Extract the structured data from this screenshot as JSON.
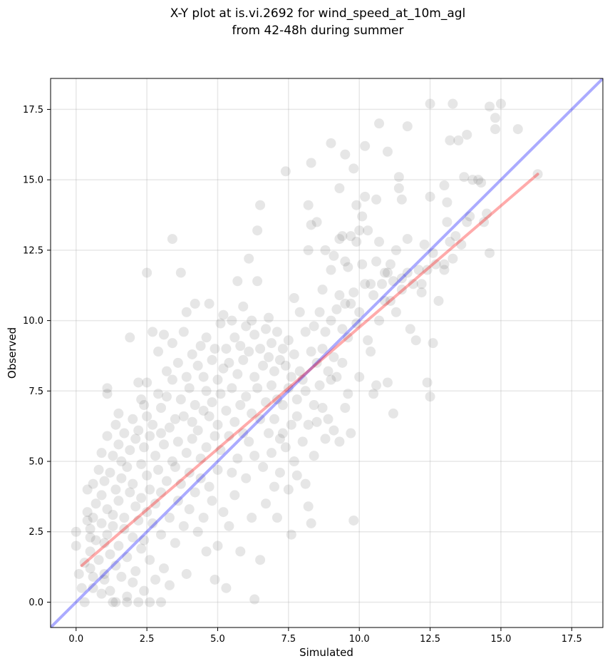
{
  "chart_data": {
    "type": "scatter",
    "title_lines": [
      "X-Y plot at is.vi.2692 for wind_speed_at_10m_agl",
      "from 42-48h during summer"
    ],
    "xlabel": "Simulated",
    "ylabel": "Observed",
    "xlim": [
      -0.9,
      18.6
    ],
    "ylim": [
      -0.9,
      18.6
    ],
    "xticks": [
      0.0,
      2.5,
      5.0,
      7.5,
      10.0,
      12.5,
      15.0,
      17.5
    ],
    "yticks": [
      0.0,
      2.5,
      5.0,
      7.5,
      10.0,
      12.5,
      15.0,
      17.5
    ],
    "xtick_labels": [
      "0.0",
      "2.5",
      "5.0",
      "7.5",
      "10.0",
      "12.5",
      "15.0",
      "17.5"
    ],
    "ytick_labels": [
      "0.0",
      "2.5",
      "5.0",
      "7.5",
      "10.0",
      "12.5",
      "15.0",
      "17.5"
    ],
    "grid": true,
    "colors": {
      "points": "#555555",
      "one_to_one": "#0000ff",
      "fit": "#ff0000"
    },
    "lines": [
      {
        "name": "one-to-one",
        "x": [
          -0.9,
          18.6
        ],
        "y": [
          -0.9,
          18.6
        ]
      },
      {
        "name": "regression",
        "x": [
          0.2,
          16.3
        ],
        "y": [
          1.3,
          15.2
        ]
      }
    ],
    "points": [
      [
        0.0,
        2.5
      ],
      [
        0.0,
        2.0
      ],
      [
        0.1,
        1.0
      ],
      [
        0.2,
        0.5
      ],
      [
        0.3,
        0.0
      ],
      [
        0.3,
        1.4
      ],
      [
        0.4,
        4.0
      ],
      [
        0.4,
        2.9
      ],
      [
        0.4,
        3.2
      ],
      [
        0.5,
        2.3
      ],
      [
        0.5,
        2.6
      ],
      [
        0.5,
        1.2
      ],
      [
        0.5,
        1.8
      ],
      [
        0.6,
        4.2
      ],
      [
        0.6,
        3.0
      ],
      [
        0.6,
        0.5
      ],
      [
        0.7,
        3.5
      ],
      [
        0.7,
        2.2
      ],
      [
        0.8,
        4.7
      ],
      [
        0.8,
        1.5
      ],
      [
        0.9,
        5.3
      ],
      [
        0.9,
        3.8
      ],
      [
        0.9,
        2.8
      ],
      [
        0.9,
        0.3
      ],
      [
        1.0,
        4.3
      ],
      [
        1.0,
        2.1
      ],
      [
        1.0,
        1.0
      ],
      [
        1.0,
        0.8
      ],
      [
        1.1,
        7.6
      ],
      [
        1.1,
        7.4
      ],
      [
        1.1,
        5.9
      ],
      [
        1.1,
        3.3
      ],
      [
        1.1,
        2.4
      ],
      [
        1.2,
        4.6
      ],
      [
        1.2,
        1.7
      ],
      [
        1.2,
        0.4
      ],
      [
        1.3,
        5.2
      ],
      [
        1.3,
        3.1
      ],
      [
        1.3,
        2.7
      ],
      [
        1.3,
        0.0
      ],
      [
        1.4,
        6.3
      ],
      [
        1.4,
        4.0
      ],
      [
        1.4,
        1.3
      ],
      [
        1.5,
        6.7
      ],
      [
        1.5,
        5.6
      ],
      [
        1.5,
        3.6
      ],
      [
        1.5,
        2.0
      ],
      [
        1.6,
        5.0
      ],
      [
        1.6,
        4.4
      ],
      [
        1.6,
        0.9
      ],
      [
        1.7,
        6.0
      ],
      [
        1.7,
        3.0
      ],
      [
        1.7,
        2.6
      ],
      [
        1.8,
        4.8
      ],
      [
        1.8,
        1.6
      ],
      [
        1.8,
        0.2
      ],
      [
        1.9,
        9.4
      ],
      [
        1.9,
        5.4
      ],
      [
        1.9,
        3.9
      ],
      [
        2.0,
        6.5
      ],
      [
        2.0,
        4.2
      ],
      [
        2.0,
        2.3
      ],
      [
        2.1,
        5.8
      ],
      [
        2.1,
        3.4
      ],
      [
        2.1,
        1.1
      ],
      [
        2.2,
        7.8
      ],
      [
        2.2,
        6.1
      ],
      [
        2.2,
        2.9
      ],
      [
        2.3,
        7.2
      ],
      [
        2.3,
        4.9
      ],
      [
        2.3,
        3.7
      ],
      [
        2.3,
        1.9
      ],
      [
        2.4,
        7.0
      ],
      [
        2.4,
        5.5
      ],
      [
        2.4,
        2.2
      ],
      [
        2.4,
        0.4
      ],
      [
        2.5,
        11.7
      ],
      [
        2.5,
        7.8
      ],
      [
        2.5,
        6.6
      ],
      [
        2.5,
        4.5
      ],
      [
        2.5,
        3.2
      ],
      [
        2.6,
        5.9
      ],
      [
        2.6,
        4.0
      ],
      [
        2.6,
        1.5
      ],
      [
        2.7,
        9.6
      ],
      [
        2.7,
        6.3
      ],
      [
        2.7,
        2.8
      ],
      [
        2.8,
        5.2
      ],
      [
        2.8,
        3.5
      ],
      [
        2.8,
        0.8
      ],
      [
        2.9,
        8.9
      ],
      [
        2.9,
        7.4
      ],
      [
        2.9,
        4.7
      ],
      [
        3.0,
        6.9
      ],
      [
        3.0,
        6.0
      ],
      [
        3.0,
        3.9
      ],
      [
        3.0,
        2.4
      ],
      [
        3.1,
        9.5
      ],
      [
        3.1,
        5.6
      ],
      [
        3.1,
        1.2
      ],
      [
        3.2,
        8.2
      ],
      [
        3.2,
        7.3
      ],
      [
        3.2,
        4.3
      ],
      [
        3.3,
        6.2
      ],
      [
        3.3,
        3.0
      ],
      [
        3.3,
        0.6
      ],
      [
        3.4,
        12.9
      ],
      [
        3.4,
        9.2
      ],
      [
        3.4,
        7.9
      ],
      [
        3.4,
        5.0
      ],
      [
        3.5,
        6.5
      ],
      [
        3.5,
        4.8
      ],
      [
        3.5,
        2.1
      ],
      [
        3.6,
        8.5
      ],
      [
        3.6,
        5.7
      ],
      [
        3.6,
        3.6
      ],
      [
        3.7,
        11.7
      ],
      [
        3.7,
        7.2
      ],
      [
        3.7,
        4.2
      ],
      [
        3.8,
        9.6
      ],
      [
        3.8,
        6.6
      ],
      [
        3.8,
        2.7
      ],
      [
        3.9,
        10.3
      ],
      [
        3.9,
        8.0
      ],
      [
        3.9,
        5.3
      ],
      [
        3.9,
        1.0
      ],
      [
        4.0,
        7.6
      ],
      [
        4.0,
        4.6
      ],
      [
        4.0,
        3.3
      ],
      [
        4.1,
        8.8
      ],
      [
        4.1,
        6.4
      ],
      [
        4.1,
        5.8
      ],
      [
        4.2,
        10.6
      ],
      [
        4.2,
        7.0
      ],
      [
        4.2,
        3.9
      ],
      [
        4.3,
        8.4
      ],
      [
        4.3,
        6.1
      ],
      [
        4.3,
        2.5
      ],
      [
        4.4,
        9.1
      ],
      [
        4.4,
        5.1
      ],
      [
        4.4,
        4.4
      ],
      [
        4.5,
        8.0
      ],
      [
        4.5,
        6.8
      ],
      [
        4.5,
        3.0
      ],
      [
        4.6,
        9.4
      ],
      [
        4.6,
        7.5
      ],
      [
        4.6,
        5.5
      ],
      [
        4.6,
        1.8
      ],
      [
        4.7,
        10.6
      ],
      [
        4.7,
        6.6
      ],
      [
        4.7,
        4.1
      ],
      [
        4.8,
        8.6
      ],
      [
        4.8,
        7.1
      ],
      [
        4.8,
        3.6
      ],
      [
        4.9,
        9.0
      ],
      [
        4.9,
        5.9
      ],
      [
        4.9,
        0.8
      ],
      [
        5.0,
        7.9
      ],
      [
        5.0,
        6.3
      ],
      [
        5.0,
        4.7
      ],
      [
        5.0,
        2.0
      ],
      [
        5.1,
        9.9
      ],
      [
        5.1,
        7.4
      ],
      [
        5.1,
        5.4
      ],
      [
        5.2,
        10.2
      ],
      [
        5.2,
        8.3
      ],
      [
        5.2,
        3.2
      ],
      [
        5.3,
        9.0
      ],
      [
        5.3,
        6.8
      ],
      [
        5.3,
        0.5
      ],
      [
        5.4,
        8.5
      ],
      [
        5.4,
        5.9
      ],
      [
        5.4,
        2.7
      ],
      [
        5.5,
        10.0
      ],
      [
        5.5,
        7.6
      ],
      [
        5.5,
        4.6
      ],
      [
        5.6,
        9.4
      ],
      [
        5.6,
        6.4
      ],
      [
        5.6,
        3.8
      ],
      [
        5.7,
        11.4
      ],
      [
        5.7,
        8.1
      ],
      [
        5.7,
        5.1
      ],
      [
        5.8,
        9.1
      ],
      [
        5.8,
        7.0
      ],
      [
        5.8,
        1.8
      ],
      [
        5.9,
        10.5
      ],
      [
        5.9,
        8.6
      ],
      [
        5.9,
        6.0
      ],
      [
        6.0,
        9.8
      ],
      [
        6.0,
        7.3
      ],
      [
        6.0,
        4.4
      ],
      [
        6.1,
        12.2
      ],
      [
        6.1,
        8.9
      ],
      [
        6.1,
        5.7
      ],
      [
        6.2,
        10.0
      ],
      [
        6.2,
        6.7
      ],
      [
        6.2,
        3.0
      ],
      [
        6.3,
        9.5
      ],
      [
        6.3,
        8.0
      ],
      [
        6.3,
        5.2
      ],
      [
        6.3,
        0.1
      ],
      [
        6.4,
        13.2
      ],
      [
        6.4,
        11.4
      ],
      [
        6.4,
        7.6
      ],
      [
        6.5,
        14.1
      ],
      [
        6.5,
        9.0
      ],
      [
        6.5,
        6.5
      ],
      [
        6.5,
        1.5
      ],
      [
        6.6,
        8.4
      ],
      [
        6.6,
        4.8
      ],
      [
        6.7,
        9.7
      ],
      [
        6.7,
        7.1
      ],
      [
        6.7,
        3.5
      ],
      [
        6.8,
        10.1
      ],
      [
        6.8,
        8.7
      ],
      [
        6.8,
        6.0
      ],
      [
        6.9,
        9.2
      ],
      [
        6.9,
        7.7
      ],
      [
        6.9,
        5.3
      ],
      [
        7.0,
        8.2
      ],
      [
        7.0,
        6.5
      ],
      [
        7.0,
        4.1
      ],
      [
        7.1,
        9.6
      ],
      [
        7.1,
        7.2
      ],
      [
        7.1,
        3.0
      ],
      [
        7.2,
        8.6
      ],
      [
        7.2,
        5.8
      ],
      [
        7.2,
        4.6
      ],
      [
        7.3,
        9.0
      ],
      [
        7.3,
        7.0
      ],
      [
        7.3,
        6.0
      ],
      [
        7.4,
        15.3
      ],
      [
        7.4,
        8.4
      ],
      [
        7.4,
        5.5
      ],
      [
        7.5,
        9.3
      ],
      [
        7.5,
        7.6
      ],
      [
        7.5,
        4.0
      ],
      [
        7.6,
        8.0
      ],
      [
        7.6,
        6.3
      ],
      [
        7.6,
        2.4
      ],
      [
        7.7,
        10.8
      ],
      [
        7.7,
        8.8
      ],
      [
        7.7,
        5.0
      ],
      [
        7.8,
        7.2
      ],
      [
        7.8,
        6.6
      ],
      [
        7.8,
        4.5
      ],
      [
        7.9,
        10.3
      ],
      [
        7.9,
        8.2
      ],
      [
        8.0,
        7.9
      ],
      [
        8.0,
        5.7
      ],
      [
        8.1,
        9.6
      ],
      [
        8.1,
        7.5
      ],
      [
        8.1,
        4.2
      ],
      [
        8.2,
        14.1
      ],
      [
        8.2,
        12.5
      ],
      [
        8.2,
        6.3
      ],
      [
        8.2,
        3.4
      ],
      [
        8.3,
        15.6
      ],
      [
        8.3,
        13.4
      ],
      [
        8.3,
        8.9
      ],
      [
        8.3,
        2.8
      ],
      [
        8.4,
        9.8
      ],
      [
        8.4,
        7.0
      ],
      [
        8.4,
        5.2
      ],
      [
        8.5,
        13.5
      ],
      [
        8.5,
        8.5
      ],
      [
        8.5,
        6.4
      ],
      [
        8.6,
        10.3
      ],
      [
        8.6,
        7.7
      ],
      [
        8.7,
        11.1
      ],
      [
        8.7,
        9.0
      ],
      [
        8.7,
        6.9
      ],
      [
        8.8,
        12.5
      ],
      [
        8.8,
        9.6
      ],
      [
        8.8,
        5.8
      ],
      [
        8.9,
        8.2
      ],
      [
        8.9,
        6.5
      ],
      [
        9.0,
        16.3
      ],
      [
        9.0,
        11.8
      ],
      [
        9.0,
        10.0
      ],
      [
        9.0,
        7.9
      ],
      [
        9.1,
        12.3
      ],
      [
        9.1,
        8.7
      ],
      [
        9.1,
        6.1
      ],
      [
        9.2,
        10.4
      ],
      [
        9.2,
        8.0
      ],
      [
        9.3,
        14.7
      ],
      [
        9.3,
        12.9
      ],
      [
        9.3,
        10.9
      ],
      [
        9.3,
        5.7
      ],
      [
        9.4,
        13.0
      ],
      [
        9.4,
        9.7
      ],
      [
        9.4,
        8.5
      ],
      [
        9.5,
        15.9
      ],
      [
        9.5,
        12.1
      ],
      [
        9.5,
        10.6
      ],
      [
        9.5,
        6.9
      ],
      [
        9.6,
        11.9
      ],
      [
        9.6,
        9.4
      ],
      [
        9.6,
        7.4
      ],
      [
        9.7,
        13.0
      ],
      [
        9.7,
        10.6
      ],
      [
        9.7,
        6.0
      ],
      [
        9.8,
        15.4
      ],
      [
        9.8,
        11.0
      ],
      [
        9.8,
        2.9
      ],
      [
        9.9,
        14.1
      ],
      [
        9.9,
        12.8
      ],
      [
        9.9,
        9.9
      ],
      [
        10.0,
        13.2
      ],
      [
        10.0,
        10.3
      ],
      [
        10.0,
        8.0
      ],
      [
        10.1,
        13.7
      ],
      [
        10.1,
        12.0
      ],
      [
        10.2,
        16.2
      ],
      [
        10.2,
        14.4
      ],
      [
        10.2,
        11.3
      ],
      [
        10.3,
        13.2
      ],
      [
        10.3,
        9.3
      ],
      [
        10.4,
        11.3
      ],
      [
        10.4,
        8.9
      ],
      [
        10.5,
        10.9
      ],
      [
        10.5,
        7.4
      ],
      [
        10.6,
        14.3
      ],
      [
        10.6,
        12.1
      ],
      [
        10.6,
        7.7
      ],
      [
        10.7,
        17.0
      ],
      [
        10.7,
        12.8
      ],
      [
        10.7,
        10.0
      ],
      [
        10.8,
        11.3
      ],
      [
        10.9,
        11.7
      ],
      [
        10.9,
        10.7
      ],
      [
        11.0,
        16.0
      ],
      [
        11.0,
        11.7
      ],
      [
        11.0,
        7.8
      ],
      [
        11.1,
        12.0
      ],
      [
        11.1,
        10.7
      ],
      [
        11.2,
        11.4
      ],
      [
        11.3,
        10.3
      ],
      [
        11.3,
        12.5
      ],
      [
        11.4,
        15.1
      ],
      [
        11.4,
        14.7
      ],
      [
        11.5,
        14.3
      ],
      [
        11.5,
        11.5
      ],
      [
        11.5,
        11.1
      ],
      [
        11.7,
        16.9
      ],
      [
        11.7,
        12.9
      ],
      [
        11.7,
        11.7
      ],
      [
        11.8,
        9.7
      ],
      [
        11.9,
        11.3
      ],
      [
        12.0,
        9.3
      ],
      [
        12.1,
        11.8
      ],
      [
        12.2,
        11.3
      ],
      [
        12.3,
        12.7
      ],
      [
        12.4,
        11.8
      ],
      [
        12.4,
        7.8
      ],
      [
        12.5,
        17.7
      ],
      [
        12.5,
        14.4
      ],
      [
        12.5,
        7.3
      ],
      [
        12.6,
        12.4
      ],
      [
        12.6,
        9.2
      ],
      [
        12.7,
        12.0
      ],
      [
        12.8,
        10.7
      ],
      [
        13.0,
        14.8
      ],
      [
        13.0,
        12.0
      ],
      [
        13.0,
        11.8
      ],
      [
        13.1,
        13.5
      ],
      [
        13.1,
        14.2
      ],
      [
        13.2,
        12.8
      ],
      [
        13.2,
        16.4
      ],
      [
        13.3,
        17.7
      ],
      [
        13.3,
        12.2
      ],
      [
        13.4,
        13.0
      ],
      [
        13.5,
        16.4
      ],
      [
        13.6,
        12.7
      ],
      [
        13.7,
        15.1
      ],
      [
        13.8,
        16.6
      ],
      [
        13.8,
        13.5
      ],
      [
        13.9,
        13.7
      ],
      [
        14.0,
        15.0
      ],
      [
        14.2,
        15.0
      ],
      [
        14.3,
        14.9
      ],
      [
        14.4,
        13.5
      ],
      [
        14.5,
        13.8
      ],
      [
        14.6,
        17.6
      ],
      [
        14.6,
        12.4
      ],
      [
        14.8,
        16.8
      ],
      [
        14.8,
        17.2
      ],
      [
        15.0,
        17.7
      ],
      [
        15.6,
        16.8
      ],
      [
        16.3,
        15.2
      ],
      [
        11.2,
        6.7
      ],
      [
        12.2,
        11.0
      ],
      [
        2.2,
        0.0
      ],
      [
        1.4,
        0.0
      ],
      [
        3.0,
        0.0
      ],
      [
        1.8,
        0.0
      ],
      [
        0.6,
        0.9
      ],
      [
        2.0,
        0.7
      ],
      [
        2.6,
        0.0
      ]
    ]
  }
}
